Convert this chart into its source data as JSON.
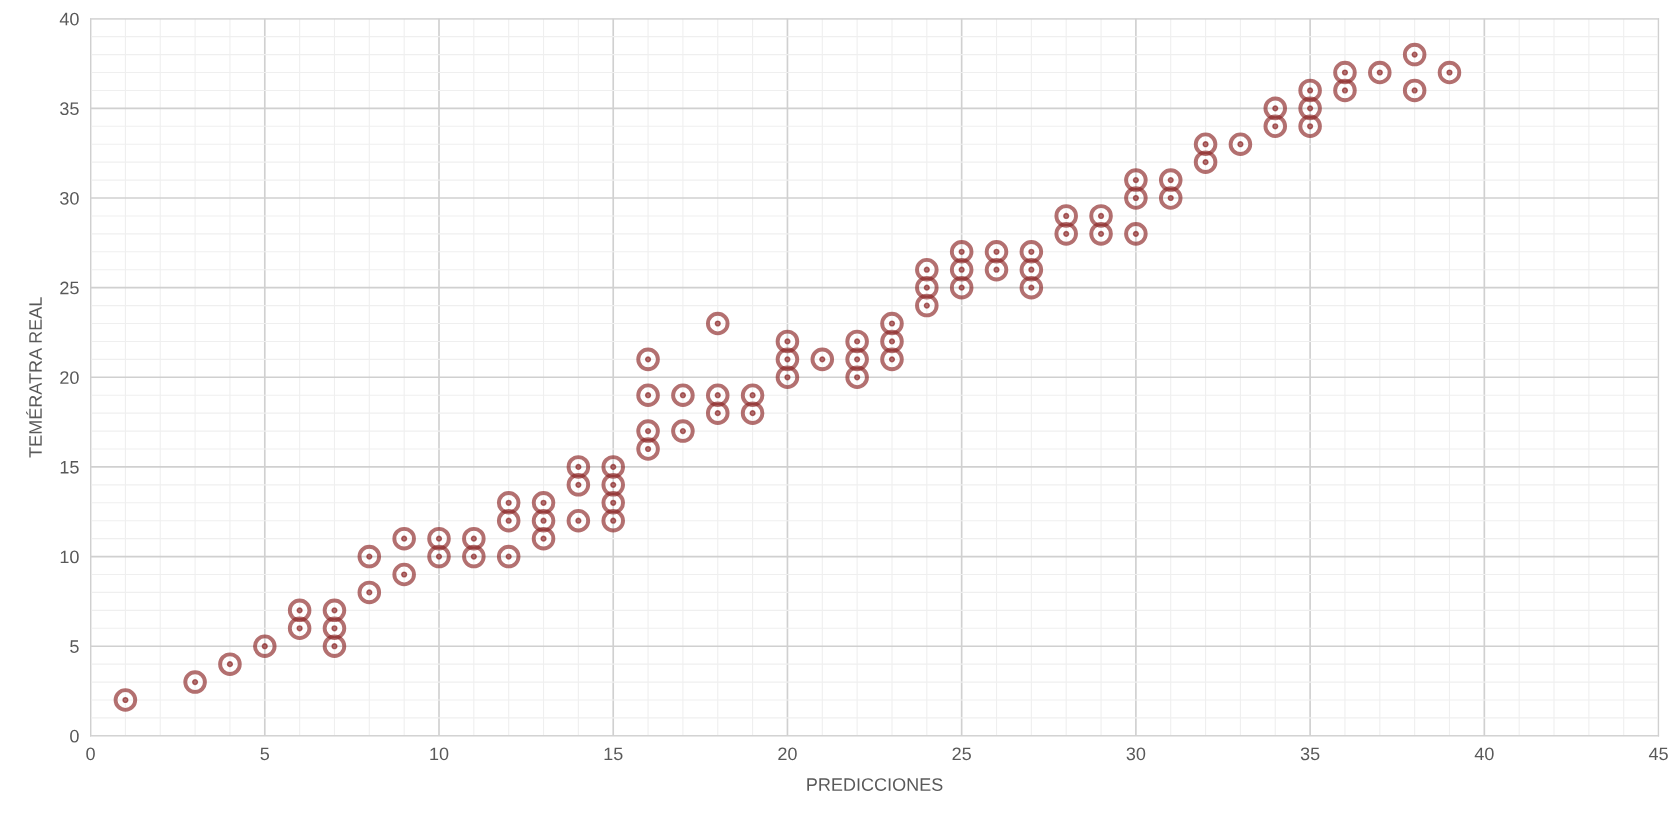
{
  "chart_data": {
    "type": "scatter",
    "xlabel": "PREDICCIONES",
    "ylabel": "TEMÉRATRA REAL",
    "xlim": [
      0,
      45
    ],
    "xticks": [
      0,
      5,
      10,
      15,
      20,
      25,
      30,
      35,
      40,
      45
    ],
    "ylim": [
      0,
      40
    ],
    "yticks": [
      0,
      5,
      10,
      15,
      20,
      25,
      30,
      35,
      40
    ],
    "grid": true,
    "marker": "circle",
    "series": [
      {
        "color": "#8b2323",
        "x": [
          1,
          3,
          4,
          5,
          6,
          6,
          7,
          7,
          7,
          8,
          8,
          9,
          9,
          10,
          10,
          11,
          11,
          12,
          12,
          12,
          13,
          13,
          13,
          14,
          14,
          14,
          15,
          15,
          15,
          15,
          16,
          16,
          16,
          16,
          17,
          17,
          18,
          18,
          18,
          19,
          19,
          20,
          20,
          20,
          21,
          22,
          22,
          22,
          23,
          23,
          23,
          24,
          24,
          24,
          25,
          25,
          25,
          26,
          26,
          27,
          27,
          27,
          28,
          28,
          29,
          29,
          30,
          30,
          30,
          31,
          31,
          32,
          32,
          33,
          34,
          34,
          35,
          35,
          35,
          36,
          36,
          37,
          38,
          38,
          39
        ],
        "values": [
          2,
          3,
          4,
          5,
          7,
          6,
          7,
          6,
          5,
          10,
          8,
          11,
          9,
          11,
          10,
          11,
          10,
          13,
          12,
          10,
          13,
          12,
          11,
          15,
          14,
          12,
          15,
          14,
          13,
          12,
          21,
          19,
          17,
          16,
          19,
          17,
          23,
          19,
          18,
          19,
          18,
          22,
          21,
          20,
          21,
          22,
          21,
          20,
          23,
          22,
          21,
          26,
          25,
          24,
          27,
          26,
          25,
          27,
          26,
          27,
          26,
          25,
          29,
          28,
          29,
          28,
          31,
          30,
          28,
          31,
          30,
          33,
          32,
          33,
          35,
          34,
          36,
          35,
          34,
          37,
          36,
          37,
          38,
          36,
          37
        ]
      }
    ]
  }
}
